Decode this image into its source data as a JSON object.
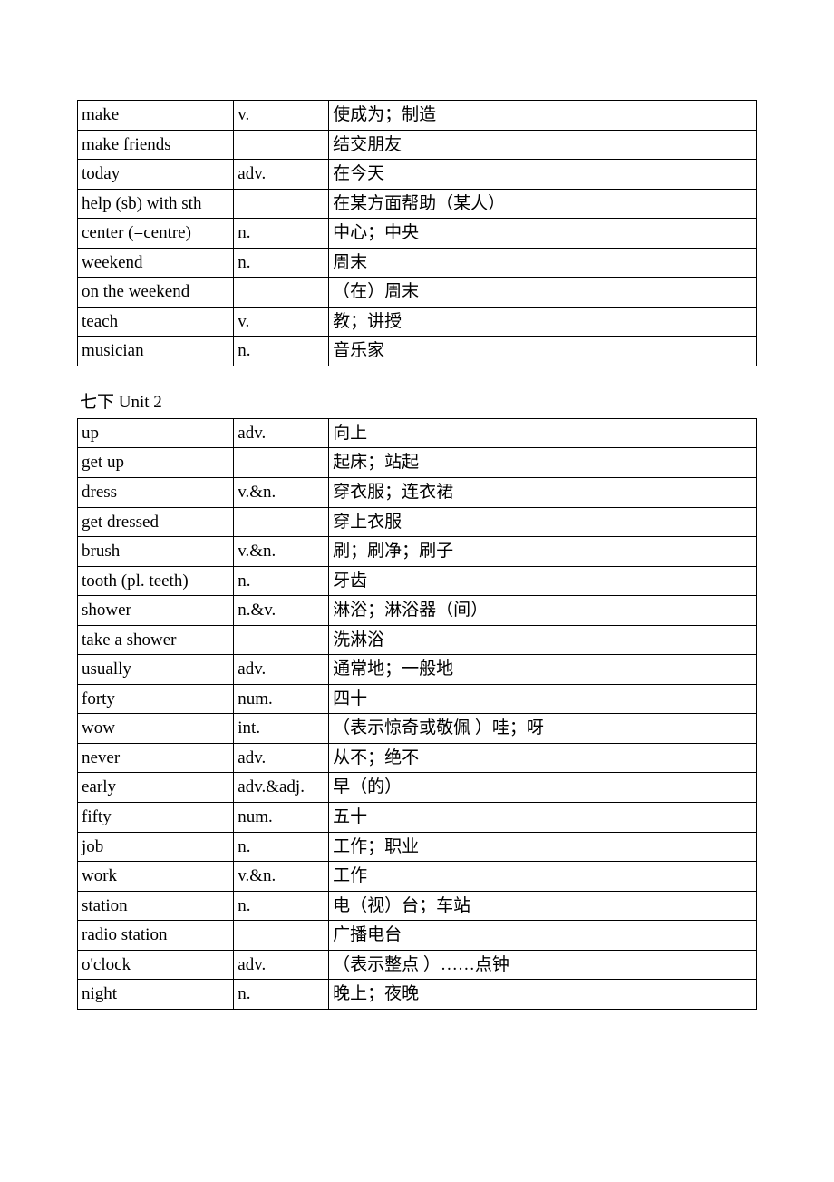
{
  "table1": {
    "rows": [
      {
        "word": "make",
        "pos": "v.",
        "def": "使成为；制造"
      },
      {
        "word": "make friends",
        "pos": "",
        "def": "结交朋友"
      },
      {
        "word": "today",
        "pos": "adv.",
        "def": "在今天"
      },
      {
        "word": "help (sb) with sth",
        "pos": "",
        "def": "在某方面帮助（某人）"
      },
      {
        "word": "center (=centre)",
        "pos": "n.",
        "def": "中心；中央"
      },
      {
        "word": "weekend",
        "pos": "n.",
        "def": "周末"
      },
      {
        "word": "on the weekend",
        "pos": "",
        "def": "（在）周末"
      },
      {
        "word": "teach",
        "pos": "v.",
        "def": "教；讲授"
      },
      {
        "word": "musician",
        "pos": "n.",
        "def": "音乐家"
      }
    ]
  },
  "heading2": "七下  Unit 2",
  "table2": {
    "rows": [
      {
        "word": "up",
        "pos": "adv.",
        "def": "向上"
      },
      {
        "word": "get up",
        "pos": "",
        "def": "起床；站起"
      },
      {
        "word": "dress",
        "pos": "v.&n.",
        "def": "穿衣服；连衣裙"
      },
      {
        "word": "get dressed",
        "pos": "",
        "def": "穿上衣服"
      },
      {
        "word": "brush",
        "pos": "v.&n.",
        "def": "刷；刷净；刷子"
      },
      {
        "word": "tooth (pl. teeth)",
        "pos": "n.",
        "def": "牙齿"
      },
      {
        "word": "shower",
        "pos": "n.&v.",
        "def": "淋浴；淋浴器（间）"
      },
      {
        "word": "take a shower",
        "pos": "",
        "def": "洗淋浴"
      },
      {
        "word": "usually",
        "pos": "adv.",
        "def": "通常地；一般地"
      },
      {
        "word": "forty",
        "pos": "num.",
        "def": "四十"
      },
      {
        "word": "wow",
        "pos": "int.",
        "def": "（表示惊奇或敬佩 ）哇；呀"
      },
      {
        "word": "never",
        "pos": "adv.",
        "def": "从不；绝不"
      },
      {
        "word": "early",
        "pos": "adv.&adj.",
        "def": "早（的）"
      },
      {
        "word": "fifty",
        "pos": "num.",
        "def": "五十"
      },
      {
        "word": "job",
        "pos": "n.",
        "def": "工作；职业"
      },
      {
        "word": "work",
        "pos": "v.&n.",
        "def": "工作"
      },
      {
        "word": "station",
        "pos": "n.",
        "def": "电（视）台；车站"
      },
      {
        "word": "radio station",
        "pos": "",
        "def": "广播电台"
      },
      {
        "word": "o'clock",
        "pos": "adv.",
        "def": "（表示整点 ）……点钟"
      },
      {
        "word": "night",
        "pos": "n.",
        "def": "晚上；夜晚"
      }
    ]
  }
}
